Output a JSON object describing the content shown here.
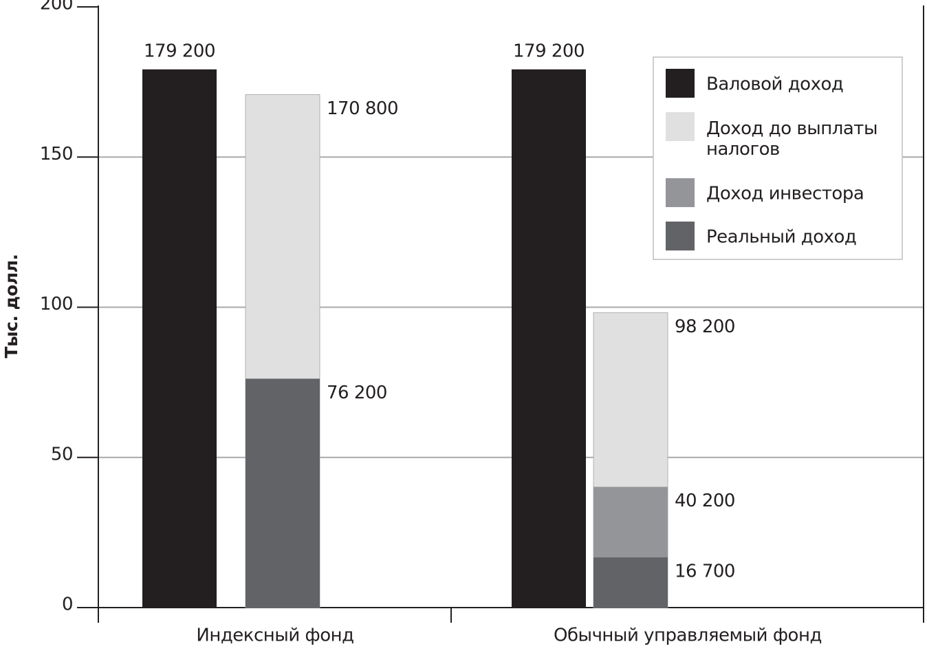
{
  "chart_data": {
    "type": "bar",
    "y_label": "Тыс. долл.",
    "categories": [
      "Индексный фонд",
      "Обычный управляемый фонд"
    ],
    "series": [
      {
        "name": "Валовой доход",
        "color": "#231f20",
        "values": [
          179.2,
          179.2
        ],
        "value_labels": [
          "179 200",
          "179 200"
        ]
      },
      {
        "name": "Доход до выплаты налогов",
        "color": "#e0e0e0",
        "values": [
          170.8,
          98.2
        ],
        "value_labels": [
          "170 800",
          "98 200"
        ]
      },
      {
        "name": "Доход инвестора",
        "color": "#939598",
        "values": [
          null,
          40.2
        ],
        "value_labels": [
          null,
          "40 200"
        ]
      },
      {
        "name": "Реальный доход",
        "color": "#626366",
        "values": [
          76.2,
          16.7
        ],
        "value_labels": [
          "76 200",
          "16 700"
        ]
      }
    ],
    "ylim": [
      0,
      200
    ],
    "yticks": [
      0,
      50,
      100,
      150,
      200
    ],
    "grid": true
  }
}
